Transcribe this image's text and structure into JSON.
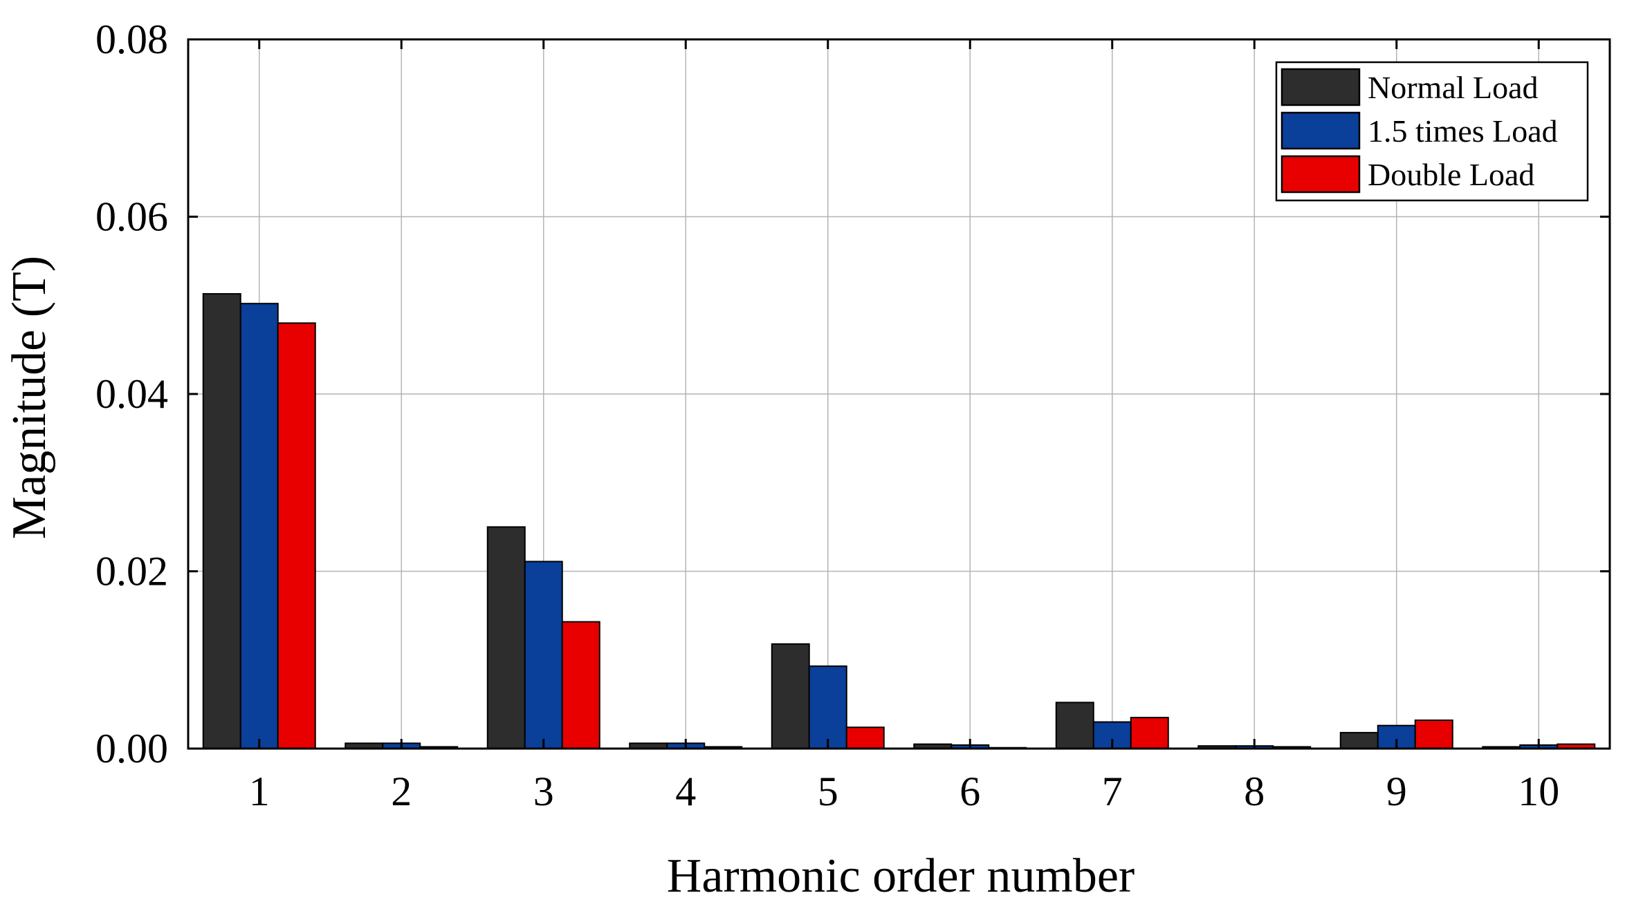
{
  "chart_data": {
    "type": "bar",
    "title": "",
    "xlabel": "Harmonic order number",
    "ylabel": "Magnitude (T)",
    "categories": [
      "1",
      "2",
      "3",
      "4",
      "5",
      "6",
      "7",
      "8",
      "9",
      "10"
    ],
    "ylim": [
      0,
      0.08
    ],
    "yticks": [
      "0.00",
      "0.02",
      "0.04",
      "0.06",
      "0.08"
    ],
    "grid": true,
    "legend_position": "top-right",
    "series": [
      {
        "name": "Normal Load",
        "color": "#2d2d2d",
        "values": [
          0.0513,
          0.0006,
          0.025,
          0.0006,
          0.0118,
          0.0005,
          0.0052,
          0.0003,
          0.0018,
          0.0002
        ]
      },
      {
        "name": "1.5 times Load",
        "color": "#0a3f9a",
        "values": [
          0.0502,
          0.0006,
          0.0211,
          0.0006,
          0.0093,
          0.0004,
          0.003,
          0.0003,
          0.0026,
          0.0004
        ]
      },
      {
        "name": "Double Load",
        "color": "#e80000",
        "values": [
          0.048,
          0.0002,
          0.0143,
          0.0002,
          0.0024,
          0.0001,
          0.0035,
          0.0002,
          0.0032,
          0.0005
        ]
      }
    ]
  }
}
